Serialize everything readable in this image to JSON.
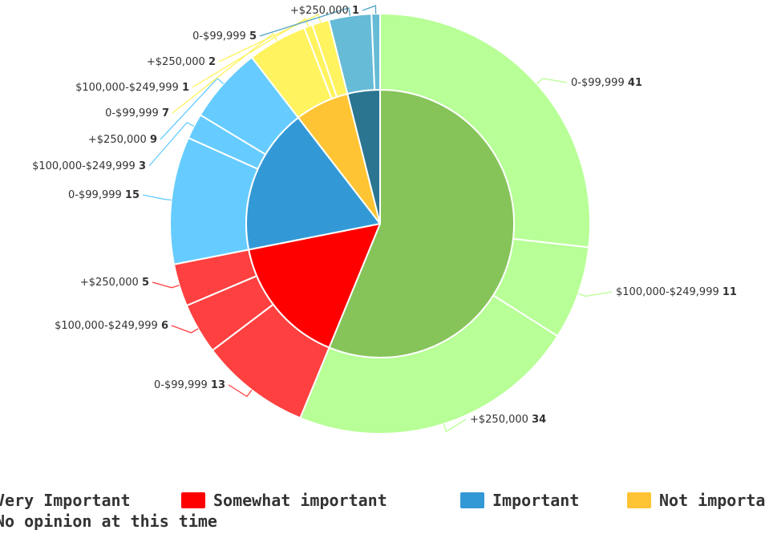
{
  "chart_data": {
    "type": "pie",
    "variant": "donut-with-inner-pie",
    "categories": [
      "Very Important",
      "Somewhat important",
      "Important",
      "Not important",
      "No opinion at this time"
    ],
    "colors": {
      "Very Important": {
        "inner": "#86c45a",
        "outer": "#b7ff96"
      },
      "Somewhat important": {
        "inner": "#ff0000",
        "outer": "#ff4040"
      },
      "Important": {
        "inner": "#3399d6",
        "outer": "#66ccff"
      },
      "Not important": {
        "inner": "#ffc433",
        "outer": "#fff35f"
      },
      "No opinion at this time": {
        "inner": "#2b7590",
        "outer": "#66bbd6"
      }
    },
    "connector_colors": {
      "Very Important": "#b7ff96",
      "Somewhat important": "#ff4040",
      "Important": "#66ccff",
      "Not important": "#fff35f",
      "No opinion at this time": "#4fa3c7"
    },
    "inner_series": [
      {
        "name": "Very Important",
        "value": 86
      },
      {
        "name": "Somewhat important",
        "value": 24
      },
      {
        "name": "Important",
        "value": 27
      },
      {
        "name": "Not important",
        "value": 10
      },
      {
        "name": "No opinion at this time",
        "value": 6
      }
    ],
    "outer_series": [
      {
        "category": "Very Important",
        "label": "0-$99,999",
        "value": 41
      },
      {
        "category": "Very Important",
        "label": "$100,000-$249,999",
        "value": 11
      },
      {
        "category": "Very Important",
        "label": "+$250,000",
        "value": 34
      },
      {
        "category": "Somewhat important",
        "label": "0-$99,999",
        "value": 13
      },
      {
        "category": "Somewhat important",
        "label": "$100,000-$249,999",
        "value": 6
      },
      {
        "category": "Somewhat important",
        "label": "+$250,000",
        "value": 5
      },
      {
        "category": "Important",
        "label": "0-$99,999",
        "value": 15
      },
      {
        "category": "Important",
        "label": "$100,000-$249,999",
        "value": 3
      },
      {
        "category": "Important",
        "label": "+$250,000",
        "value": 9
      },
      {
        "category": "Not important",
        "label": "0-$99,999",
        "value": 7
      },
      {
        "category": "Not important",
        "label": "$100,000-$249,999",
        "value": 1
      },
      {
        "category": "Not important",
        "label": "+$250,000",
        "value": 2
      },
      {
        "category": "No opinion at this time",
        "label": "0-$99,999",
        "value": 5
      },
      {
        "category": "No opinion at this time",
        "label": "+$250,000",
        "value": 1
      }
    ],
    "legend": {
      "placement": "bottom",
      "items": [
        "Very Important",
        "Somewhat important",
        "Important",
        "Not important",
        "No opinion at this time"
      ]
    }
  }
}
